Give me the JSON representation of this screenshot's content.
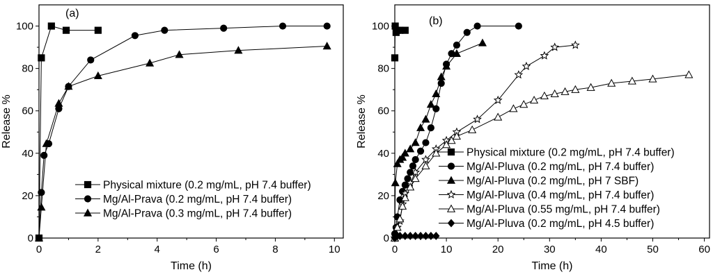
{
  "chart_data": [
    {
      "type": "line",
      "panel_label": "(a)",
      "xlabel": "Time (h)",
      "ylabel": "Release %",
      "xlim": [
        0,
        10.3
      ],
      "ylim": [
        0,
        110
      ],
      "xticks": [
        0,
        2,
        4,
        6,
        8,
        10
      ],
      "yticks": [
        0,
        20,
        40,
        60,
        80,
        100
      ],
      "legend_position": "bottom-right",
      "series": [
        {
          "name": "Physical mixture (0.2 mg/mL, pH 7.4 buffer)",
          "marker": "square-filled",
          "x": [
            0,
            0.08,
            0.42,
            0.92,
            2.0
          ],
          "y": [
            0,
            85,
            100,
            98,
            98
          ]
        },
        {
          "name": "Mg/Al-Prava (0.2 mg/mL, pH 7.4 buffer)",
          "marker": "circle-filled",
          "x": [
            0,
            0.08,
            0.17,
            0.33,
            0.67,
            1.0,
            1.75,
            3.25,
            4.25,
            6.25,
            8.25,
            9.75
          ],
          "y": [
            0,
            21.5,
            39,
            44.5,
            61,
            71.5,
            84,
            95.5,
            98,
            99,
            100,
            100
          ]
        },
        {
          "name": "Mg/Al-Prava (0.3 mg/mL, pH 7.4 buffer)",
          "marker": "triangle-filled",
          "x": [
            0,
            0.08,
            0.25,
            0.67,
            1.0,
            2.0,
            3.75,
            4.75,
            6.75,
            9.75
          ],
          "y": [
            0,
            14.5,
            44.5,
            63.5,
            71.5,
            76.5,
            82.5,
            86.5,
            88.5,
            90.5
          ]
        }
      ]
    },
    {
      "type": "line",
      "panel_label": "(b)",
      "xlabel": "Time (h)",
      "ylabel": "Release %",
      "xlim": [
        0,
        61
      ],
      "ylim": [
        0,
        110
      ],
      "xticks": [
        0,
        10,
        20,
        30,
        40,
        50,
        60
      ],
      "yticks": [
        0,
        20,
        40,
        60,
        80,
        100
      ],
      "legend_position": "bottom-right",
      "series": [
        {
          "name": "Physical mixture (0.2 mg/mL, pH 7.4 buffer)",
          "marker": "square-filled",
          "x": [
            0,
            0.08,
            0.25,
            0.5,
            1.0,
            2.0
          ],
          "y": [
            85,
            100,
            97,
            98,
            98,
            98
          ]
        },
        {
          "name": "Mg/Al-Pluva (0.2 mg/mL, pH 7.4 buffer)",
          "marker": "circle-filled",
          "x": [
            0,
            0.25,
            0.5,
            1.0,
            1.5,
            2.0,
            2.5,
            3.0,
            3.5,
            4.0,
            5.0,
            6.0,
            7.0,
            8.0,
            9.0,
            10.0,
            11.0,
            12.0,
            14.0,
            16.0,
            24.0
          ],
          "y": [
            2,
            5,
            10,
            18,
            22,
            25,
            28,
            31,
            34,
            37,
            41,
            45,
            52,
            61,
            73,
            82,
            87,
            91,
            97,
            100,
            100
          ]
        },
        {
          "name": "Mg/Al-Pluva (0.2 mg/mL, pH 7 SBF)",
          "marker": "triangle-filled",
          "x": [
            0,
            0.1,
            0.5,
            1.0,
            1.5,
            2.0,
            3.0,
            4.0,
            5.0,
            6.0,
            7.0,
            8.0,
            9.0,
            10.0,
            12.0,
            17.0
          ],
          "y": [
            0,
            26,
            35,
            37,
            38,
            40,
            42,
            45,
            52,
            56,
            63,
            68,
            76,
            81,
            87,
            92
          ]
        },
        {
          "name": "Mg/Al-Pluva (0.4 mg/mL, pH 7.4 buffer)",
          "marker": "star-open",
          "x": [
            0,
            0.5,
            1.0,
            1.5,
            2.0,
            3.0,
            4.0,
            6.0,
            8.0,
            10.0,
            12.0,
            16.0,
            20.0,
            24.0,
            25.5,
            29.0,
            31.0,
            35.0
          ],
          "y": [
            0,
            5,
            8,
            16,
            21,
            26,
            31,
            37,
            42,
            46,
            50,
            56,
            65,
            77,
            81,
            86,
            90,
            91
          ]
        },
        {
          "name": "Mg/Al-Pluva (0.55 mg/mL, pH 7.4 buffer)",
          "marker": "triangle-open",
          "x": [
            0,
            0.5,
            1.0,
            1.5,
            2.0,
            3.0,
            4.0,
            6.0,
            8.0,
            10.0,
            11.0,
            12.0,
            15.0,
            20.0,
            23.0,
            25.0,
            27.0,
            29.0,
            31.0,
            33.0,
            35.0,
            38.0,
            42.0,
            46.0,
            50.0,
            57.0
          ],
          "y": [
            0,
            5,
            9,
            15,
            19,
            24,
            28,
            34,
            40,
            44,
            46,
            48,
            51,
            57,
            61,
            63,
            65,
            67,
            68,
            69,
            70,
            71,
            73,
            74,
            75,
            77
          ]
        },
        {
          "name": "Mg/Al-Pluva (0.2 mg/mL, pH 4.5 buffer)",
          "marker": "diamond-filled",
          "x": [
            0,
            0.5,
            1.0,
            2.0,
            3.0,
            4.0,
            5.0,
            6.0,
            7.0,
            8.0
          ],
          "y": [
            0,
            1,
            1,
            1,
            1,
            1,
            1,
            1,
            1,
            1
          ]
        }
      ]
    }
  ]
}
